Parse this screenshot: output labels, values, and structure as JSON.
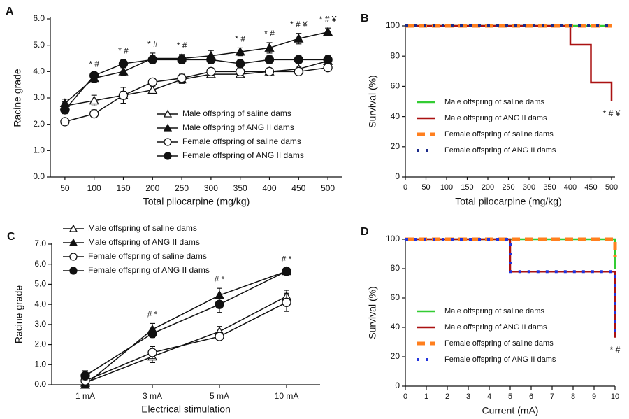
{
  "chart_data": [
    {
      "type": "line",
      "panel": "A",
      "ylabel": "Racine grade",
      "xlabel": "Total pilocarpine (mg/kg)",
      "categories": [
        "50",
        "100",
        "150",
        "200",
        "250",
        "300",
        "350",
        "400",
        "450",
        "500"
      ],
      "ylim": [
        0,
        6
      ],
      "yticks": [
        {
          "value": 0,
          "label": "0.0"
        },
        {
          "value": 1,
          "label": "1.0"
        },
        {
          "value": 2,
          "label": "2.0"
        },
        {
          "value": 3,
          "label": "3.0"
        },
        {
          "value": 4,
          "label": "4.0"
        },
        {
          "value": 5,
          "label": "5.0"
        },
        {
          "value": 6,
          "label": "6.0"
        }
      ],
      "legend": "bottom-right",
      "annotations": [
        null,
        "* #",
        "* #",
        "* #",
        "* #",
        null,
        "* #",
        "* #",
        "* # ¥",
        "* # ¥"
      ],
      "series": [
        {
          "name": "Male offspring of saline dams",
          "color": "#111111",
          "marker": "triangle-open",
          "values": [
            2.7,
            2.9,
            3.1,
            3.3,
            3.7,
            3.9,
            3.9,
            4.0,
            4.1,
            4.4
          ],
          "errors": [
            0.15,
            0.2,
            0.3,
            0.15,
            0.15,
            0.1,
            0.1,
            0.1,
            0.1,
            0.15
          ]
        },
        {
          "name": "Male offspring of ANG II dams",
          "color": "#111111",
          "marker": "triangle",
          "values": [
            2.8,
            3.75,
            4.0,
            4.5,
            4.5,
            4.6,
            4.75,
            4.9,
            5.25,
            5.5
          ],
          "errors": [
            0.15,
            0.15,
            0.15,
            0.2,
            0.15,
            0.2,
            0.15,
            0.2,
            0.2,
            0.15
          ]
        },
        {
          "name": "Female offspring of saline dams",
          "color": "#111111",
          "marker": "circle-open",
          "values": [
            2.1,
            2.4,
            3.1,
            3.6,
            3.75,
            4.0,
            4.0,
            4.0,
            4.0,
            4.15
          ],
          "errors": [
            0.1,
            0.15,
            0.15,
            0.15,
            0.15,
            0.1,
            0.1,
            0.1,
            0.1,
            0.1
          ]
        },
        {
          "name": "Female offspring of ANG II dams",
          "color": "#111111",
          "marker": "circle",
          "values": [
            2.55,
            3.85,
            4.3,
            4.45,
            4.45,
            4.45,
            4.3,
            4.45,
            4.45,
            4.45
          ],
          "errors": [
            0.15,
            0.1,
            0.15,
            0.15,
            0.15,
            0.15,
            0.15,
            0.15,
            0.15,
            0.15
          ]
        }
      ]
    },
    {
      "type": "survival",
      "panel": "B",
      "ylabel": "Survival (%)",
      "xlabel": "Total pilocarpine (mg/kg)",
      "xlim": [
        0,
        500
      ],
      "xticks": [
        0,
        50,
        100,
        150,
        200,
        250,
        300,
        350,
        400,
        450,
        500
      ],
      "ylim": [
        0,
        100
      ],
      "yticks": [
        0,
        20,
        40,
        60,
        80,
        100
      ],
      "legend": "bottom-left",
      "annotation": "* # ¥",
      "series": [
        {
          "name": "Male offspring of saline dams",
          "color": "#33cc33",
          "dash": "solid",
          "x": [
            0,
            500
          ],
          "values": [
            100,
            100
          ]
        },
        {
          "name": "Male offspring of ANG II dams",
          "color": "#aa1111",
          "dash": "solid",
          "x": [
            0,
            400,
            400,
            450,
            450,
            500,
            500
          ],
          "values": [
            100,
            100,
            87.5,
            87.5,
            62.5,
            62.5,
            50
          ]
        },
        {
          "name": "Female offspring of saline dams",
          "color": "#ff7f1e",
          "dash": "dashed",
          "x": [
            0,
            500
          ],
          "values": [
            100,
            100
          ]
        },
        {
          "name": "Female offspring of ANG II dams",
          "color": "#1a2a8a",
          "dash": "dotted",
          "x": [
            0,
            500
          ],
          "values": [
            100,
            100
          ]
        }
      ]
    },
    {
      "type": "line",
      "panel": "C",
      "ylabel": "Racine grade",
      "xlabel": "Electrical stimulation",
      "categories": [
        "1 mA",
        "3 mA",
        "5 mA",
        "10 mA"
      ],
      "ylim": [
        0,
        7
      ],
      "yticks": [
        {
          "value": 0,
          "label": "0.0"
        },
        {
          "value": 1,
          "label": "1.0"
        },
        {
          "value": 2,
          "label": "2.0"
        },
        {
          "value": 3,
          "label": "3.0"
        },
        {
          "value": 4,
          "label": "4.0"
        },
        {
          "value": 5,
          "label": "5.0"
        },
        {
          "value": 6,
          "label": "6.0"
        },
        {
          "value": 7,
          "label": "7.0"
        }
      ],
      "legend": "top-left",
      "annotations": [
        null,
        "# *",
        "# *",
        "# *"
      ],
      "series": [
        {
          "name": "Male offspring of saline dams",
          "color": "#111111",
          "marker": "triangle-open",
          "values": [
            0.1,
            1.4,
            2.65,
            4.4
          ],
          "errors": [
            0.1,
            0.3,
            0.25,
            0.3
          ]
        },
        {
          "name": "Male offspring of ANG II dams",
          "color": "#111111",
          "marker": "triangle",
          "values": [
            0.0,
            2.75,
            4.45,
            5.65
          ],
          "errors": [
            0.05,
            0.3,
            0.35,
            0.15
          ]
        },
        {
          "name": "Female offspring of saline dams",
          "color": "#111111",
          "marker": "circle-open",
          "values": [
            0.2,
            1.6,
            2.4,
            4.1
          ],
          "errors": [
            0.1,
            0.3,
            0.1,
            0.45
          ]
        },
        {
          "name": "Female offspring of ANG II dams",
          "color": "#111111",
          "marker": "circle",
          "values": [
            0.45,
            2.55,
            4.0,
            5.65
          ],
          "errors": [
            0.25,
            0.2,
            0.4,
            0.15
          ]
        }
      ]
    },
    {
      "type": "survival",
      "panel": "D",
      "ylabel": "Survival (%)",
      "xlabel": "Current (mA)",
      "xlim": [
        0,
        10
      ],
      "xticks": [
        0,
        1,
        2,
        3,
        4,
        5,
        6,
        7,
        8,
        9,
        10
      ],
      "ylim": [
        0,
        100
      ],
      "yticks": [
        0,
        20,
        40,
        60,
        80,
        100
      ],
      "legend": "bottom-left",
      "annotation": "* #",
      "series": [
        {
          "name": "Male offspring of saline dams",
          "color": "#33cc33",
          "dash": "solid",
          "x": [
            0,
            10,
            10
          ],
          "values": [
            100,
            100,
            80
          ]
        },
        {
          "name": "Male offspring of ANG II dams",
          "color": "#aa1111",
          "dash": "solid",
          "x": [
            0,
            5,
            5,
            10,
            10
          ],
          "values": [
            100,
            100,
            78,
            78,
            33
          ]
        },
        {
          "name": "Female offspring of saline dams",
          "color": "#ff7f1e",
          "dash": "dashed",
          "x": [
            0,
            10,
            10
          ],
          "values": [
            100,
            100,
            88
          ]
        },
        {
          "name": "Female offspring of ANG II dams",
          "color": "#2233dd",
          "dash": "dotted",
          "x": [
            0,
            5,
            5,
            10,
            10
          ],
          "values": [
            100,
            100,
            78,
            78,
            33
          ]
        }
      ]
    }
  ]
}
